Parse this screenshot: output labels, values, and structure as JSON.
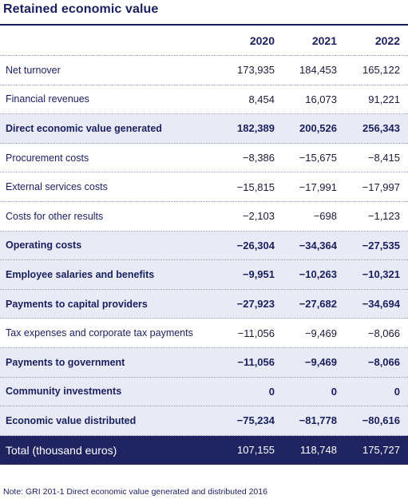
{
  "title": "Retained economic value",
  "years": [
    "2020",
    "2021",
    "2022"
  ],
  "rows": [
    {
      "label": "Net turnover",
      "values": [
        "173,935",
        "184,453",
        "165,122"
      ],
      "bold": false
    },
    {
      "label": "Financial revenues",
      "values": [
        "8,454",
        "16,073",
        "91,221"
      ],
      "bold": false
    },
    {
      "label": "Direct economic value generated",
      "values": [
        "182,389",
        "200,526",
        "256,343"
      ],
      "bold": true
    },
    {
      "label": "Procurement costs",
      "values": [
        "−8,386",
        "−15,675",
        "−8,415"
      ],
      "bold": false
    },
    {
      "label": "External services costs",
      "values": [
        "−15,815",
        "−17,991",
        "−17,997"
      ],
      "bold": false
    },
    {
      "label": "Costs for other results",
      "values": [
        "−2,103",
        "−698",
        "−1,123"
      ],
      "bold": false
    },
    {
      "label": "Operating costs",
      "values": [
        "−26,304",
        "−34,364",
        "−27,535"
      ],
      "bold": true
    },
    {
      "label": "Employee salaries and benefits",
      "values": [
        "−9,951",
        "−10,263",
        "−10,321"
      ],
      "bold": true
    },
    {
      "label": "Payments to capital providers",
      "values": [
        "−27,923",
        "−27,682",
        "−34,694"
      ],
      "bold": true
    },
    {
      "label": "Tax expenses and corporate tax payments",
      "values": [
        "−11,056",
        "−9,469",
        "−8,066"
      ],
      "bold": false
    },
    {
      "label": "Payments to government",
      "values": [
        "−11,056",
        "−9,469",
        "−8,066"
      ],
      "bold": true
    },
    {
      "label": "Community investments",
      "values": [
        "0",
        "0",
        "0"
      ],
      "bold": true
    },
    {
      "label": "Economic value distributed",
      "values": [
        "−75,234",
        "−81,778",
        "−80,616"
      ],
      "bold": true
    }
  ],
  "total": {
    "label": "Total (thousand euros)",
    "values": [
      "107,155",
      "118,748",
      "175,727"
    ]
  },
  "note": "Note: GRI 201-1  Direct economic value generated and distributed 2016"
}
